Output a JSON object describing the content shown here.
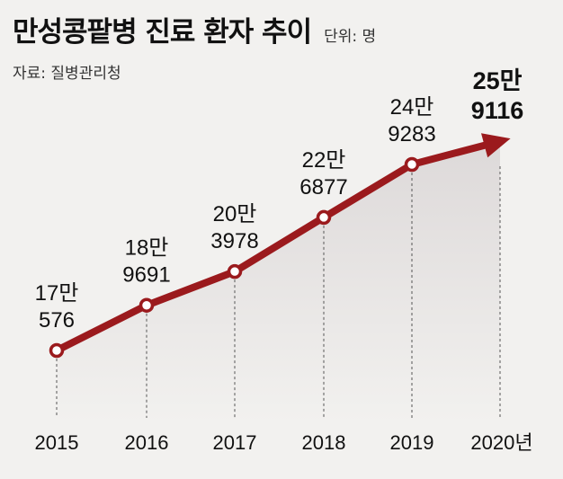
{
  "header": {
    "title": "만성콩팥병 진료 환자 추이",
    "unit": "단위: 명",
    "source": "자료: 질병관리청"
  },
  "colors": {
    "line": "#9b1a1d",
    "marker_fill": "#ffffff",
    "area_top": "#ddd9d9",
    "background": "#f2f1ef",
    "text": "#111111"
  },
  "chart_data": {
    "type": "line",
    "title": "만성콩팥병 진료 환자 추이",
    "unit": "단위: 명",
    "x": [
      "2015",
      "2016",
      "2017",
      "2018",
      "2019",
      "2020년"
    ],
    "values": [
      170576,
      189691,
      203978,
      226877,
      249283,
      259116
    ],
    "data_labels": [
      [
        "17만",
        "576"
      ],
      [
        "18만",
        "9691"
      ],
      [
        "20만",
        "3978"
      ],
      [
        "22만",
        "6877"
      ],
      [
        "24만",
        "9283"
      ],
      [
        "25만",
        "9116"
      ]
    ],
    "last_point_arrow": true,
    "grid": "vertical dashed lines at each year",
    "legend": "none"
  }
}
